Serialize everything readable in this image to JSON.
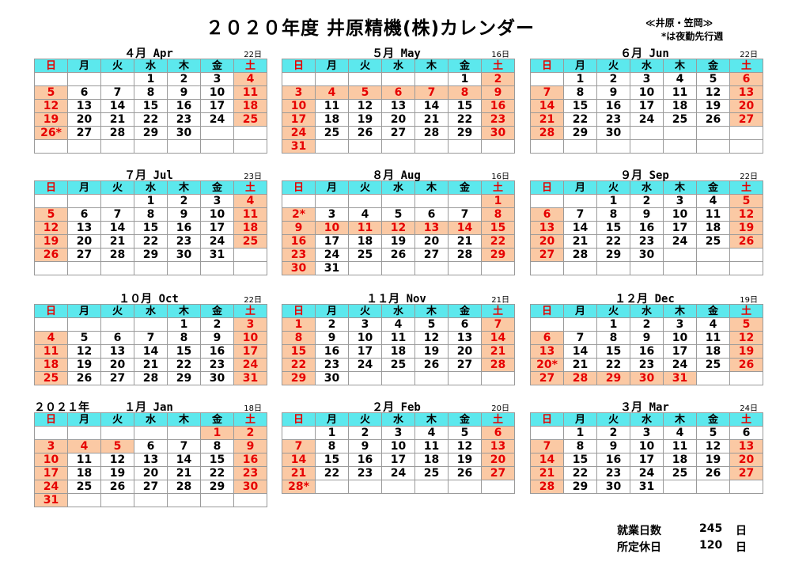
{
  "title": "２０２０年度 井原精機(株)カレンダー",
  "note_line1": "≪井原・笠岡≫",
  "note_line2": "*は夜勤先行週",
  "weekday_labels": [
    "日",
    "月",
    "火",
    "水",
    "木",
    "金",
    "土"
  ],
  "months": [
    {
      "label": "４月 Apr",
      "prefix": "",
      "days": "22日",
      "weeks": [
        [
          "",
          "",
          "",
          "1",
          "2",
          "3",
          "4"
        ],
        [
          "5",
          "6",
          "7",
          "8",
          "9",
          "10",
          "11"
        ],
        [
          "12",
          "13",
          "14",
          "15",
          "16",
          "17",
          "18"
        ],
        [
          "19",
          "20",
          "21",
          "22",
          "23",
          "24",
          "25"
        ],
        [
          "26*",
          "27",
          "28",
          "29",
          "30",
          "",
          ""
        ],
        [
          "",
          "",
          "",
          "",
          "",
          "",
          ""
        ]
      ],
      "holidays": [
        [
          "4"
        ],
        [
          "5",
          "11"
        ],
        [
          "12",
          "18"
        ],
        [
          "19",
          "25"
        ],
        [
          "26*"
        ],
        []
      ]
    },
    {
      "label": "５月 May",
      "prefix": "",
      "days": "16日",
      "weeks": [
        [
          "",
          "",
          "",
          "",
          "",
          "1",
          "2"
        ],
        [
          "3",
          "4",
          "5",
          "6",
          "7",
          "8",
          "9"
        ],
        [
          "10",
          "11",
          "12",
          "13",
          "14",
          "15",
          "16"
        ],
        [
          "17",
          "18",
          "19",
          "20",
          "21",
          "22",
          "23"
        ],
        [
          "24",
          "25",
          "26",
          "27",
          "28",
          "29",
          "30"
        ],
        [
          "31",
          "",
          "",
          "",
          "",
          "",
          ""
        ]
      ],
      "holidays": [
        [
          "2"
        ],
        [
          "3",
          "4",
          "5",
          "6",
          "7",
          "8",
          "9"
        ],
        [
          "10",
          "16"
        ],
        [
          "17",
          "23"
        ],
        [
          "24",
          "30"
        ],
        [
          "31"
        ]
      ]
    },
    {
      "label": "６月 Jun",
      "prefix": "",
      "days": "22日",
      "weeks": [
        [
          "",
          "1",
          "2",
          "3",
          "4",
          "5",
          "6"
        ],
        [
          "7",
          "8",
          "9",
          "10",
          "11",
          "12",
          "13"
        ],
        [
          "14",
          "15",
          "16",
          "17",
          "18",
          "19",
          "20"
        ],
        [
          "21",
          "22",
          "23",
          "24",
          "25",
          "26",
          "27"
        ],
        [
          "28",
          "29",
          "30",
          "",
          "",
          "",
          ""
        ],
        [
          "",
          "",
          "",
          "",
          "",
          "",
          ""
        ]
      ],
      "holidays": [
        [
          "6"
        ],
        [
          "7",
          "13"
        ],
        [
          "14",
          "20"
        ],
        [
          "21",
          "27"
        ],
        [
          "28"
        ],
        []
      ]
    },
    {
      "label": "７月 Jul",
      "prefix": "",
      "days": "23日",
      "weeks": [
        [
          "",
          "",
          "",
          "1",
          "2",
          "3",
          "4"
        ],
        [
          "5",
          "6",
          "7",
          "8",
          "9",
          "10",
          "11"
        ],
        [
          "12",
          "13",
          "14",
          "15",
          "16",
          "17",
          "18"
        ],
        [
          "19",
          "20",
          "21",
          "22",
          "23",
          "24",
          "25"
        ],
        [
          "26",
          "27",
          "28",
          "29",
          "30",
          "31",
          ""
        ],
        [
          "",
          "",
          "",
          "",
          "",
          "",
          ""
        ]
      ],
      "holidays": [
        [
          "4"
        ],
        [
          "5",
          "11"
        ],
        [
          "12",
          "18"
        ],
        [
          "19",
          "25"
        ],
        [
          "26"
        ],
        []
      ]
    },
    {
      "label": "８月 Aug",
      "prefix": "",
      "days": "16日",
      "weeks": [
        [
          "",
          "",
          "",
          "",
          "",
          "",
          "1"
        ],
        [
          "2*",
          "3",
          "4",
          "5",
          "6",
          "7",
          "8"
        ],
        [
          "9",
          "10",
          "11",
          "12",
          "13",
          "14",
          "15"
        ],
        [
          "16",
          "17",
          "18",
          "19",
          "20",
          "21",
          "22"
        ],
        [
          "23",
          "24",
          "25",
          "26",
          "27",
          "28",
          "29"
        ],
        [
          "30",
          "31",
          "",
          "",
          "",
          "",
          ""
        ]
      ],
      "holidays": [
        [
          "1"
        ],
        [
          "2*",
          "8"
        ],
        [
          "9",
          "10",
          "11",
          "12",
          "13",
          "14",
          "15"
        ],
        [
          "16",
          "22"
        ],
        [
          "23",
          "29"
        ],
        [
          "30"
        ]
      ]
    },
    {
      "label": "９月 Sep",
      "prefix": "",
      "days": "22日",
      "weeks": [
        [
          "",
          "",
          "1",
          "2",
          "3",
          "4",
          "5"
        ],
        [
          "6",
          "7",
          "8",
          "9",
          "10",
          "11",
          "12"
        ],
        [
          "13",
          "14",
          "15",
          "16",
          "17",
          "18",
          "19"
        ],
        [
          "20",
          "21",
          "22",
          "23",
          "24",
          "25",
          "26"
        ],
        [
          "27",
          "28",
          "29",
          "30",
          "",
          "",
          ""
        ],
        [
          "",
          "",
          "",
          "",
          "",
          "",
          ""
        ]
      ],
      "holidays": [
        [
          "5"
        ],
        [
          "6",
          "12"
        ],
        [
          "13",
          "19"
        ],
        [
          "20",
          "26"
        ],
        [
          "27"
        ],
        []
      ]
    },
    {
      "label": "１０月 Oct",
      "prefix": "",
      "days": "22日",
      "weeks": [
        [
          "",
          "",
          "",
          "",
          "1",
          "2",
          "3"
        ],
        [
          "4",
          "5",
          "6",
          "7",
          "8",
          "9",
          "10"
        ],
        [
          "11",
          "12",
          "13",
          "14",
          "15",
          "16",
          "17"
        ],
        [
          "18",
          "19",
          "20",
          "21",
          "22",
          "23",
          "24"
        ],
        [
          "25",
          "26",
          "27",
          "28",
          "29",
          "30",
          "31"
        ]
      ],
      "holidays": [
        [
          "3"
        ],
        [
          "4",
          "10"
        ],
        [
          "11",
          "17"
        ],
        [
          "18",
          "24"
        ],
        [
          "25",
          "31"
        ]
      ]
    },
    {
      "label": "１１月 Nov",
      "prefix": "",
      "days": "21日",
      "weeks": [
        [
          "1",
          "2",
          "3",
          "4",
          "5",
          "6",
          "7"
        ],
        [
          "8",
          "9",
          "10",
          "11",
          "12",
          "13",
          "14"
        ],
        [
          "15",
          "16",
          "17",
          "18",
          "19",
          "20",
          "21"
        ],
        [
          "22",
          "23",
          "24",
          "25",
          "26",
          "27",
          "28"
        ],
        [
          "29",
          "30",
          "",
          "",
          "",
          "",
          ""
        ]
      ],
      "holidays": [
        [
          "1",
          "7"
        ],
        [
          "8",
          "14"
        ],
        [
          "15",
          "21"
        ],
        [
          "22",
          "28"
        ],
        [
          "29"
        ]
      ]
    },
    {
      "label": "１２月 Dec",
      "prefix": "",
      "days": "19日",
      "weeks": [
        [
          "",
          "",
          "1",
          "2",
          "3",
          "4",
          "5"
        ],
        [
          "6",
          "7",
          "8",
          "9",
          "10",
          "11",
          "12"
        ],
        [
          "13",
          "14",
          "15",
          "16",
          "17",
          "18",
          "19"
        ],
        [
          "20*",
          "21",
          "22",
          "23",
          "24",
          "25",
          "26"
        ],
        [
          "27",
          "28",
          "29",
          "30",
          "31",
          "",
          ""
        ]
      ],
      "holidays": [
        [
          "5"
        ],
        [
          "6",
          "12"
        ],
        [
          "13",
          "19"
        ],
        [
          "20*",
          "26"
        ],
        [
          "27",
          "28",
          "29",
          "30",
          "31"
        ]
      ]
    },
    {
      "label": "１月 Jan",
      "prefix": "２０２１年",
      "days": "18日",
      "weeks": [
        [
          "",
          "",
          "",
          "",
          "",
          "1",
          "2"
        ],
        [
          "3",
          "4",
          "5",
          "6",
          "7",
          "8",
          "9"
        ],
        [
          "10",
          "11",
          "12",
          "13",
          "14",
          "15",
          "16"
        ],
        [
          "17",
          "18",
          "19",
          "20",
          "21",
          "22",
          "23"
        ],
        [
          "24",
          "25",
          "26",
          "27",
          "28",
          "29",
          "30"
        ],
        [
          "31",
          "",
          "",
          "",
          "",
          "",
          ""
        ]
      ],
      "holidays": [
        [
          "1",
          "2"
        ],
        [
          "3",
          "4",
          "5",
          "9"
        ],
        [
          "10",
          "16"
        ],
        [
          "17",
          "23"
        ],
        [
          "24",
          "30"
        ],
        [
          "31"
        ]
      ]
    },
    {
      "label": "２月 Feb",
      "prefix": "",
      "days": "20日",
      "weeks": [
        [
          "",
          "1",
          "2",
          "3",
          "4",
          "5",
          "6"
        ],
        [
          "7",
          "8",
          "9",
          "10",
          "11",
          "12",
          "13"
        ],
        [
          "14",
          "15",
          "16",
          "17",
          "18",
          "19",
          "20"
        ],
        [
          "21",
          "22",
          "23",
          "24",
          "25",
          "26",
          "27"
        ],
        [
          "28*",
          "",
          "",
          "",
          "",
          "",
          ""
        ]
      ],
      "holidays": [
        [
          "6"
        ],
        [
          "7",
          "13"
        ],
        [
          "14",
          "20"
        ],
        [
          "21",
          "27"
        ],
        [
          "28*"
        ]
      ]
    },
    {
      "label": "３月 Mar",
      "prefix": "",
      "days": "24日",
      "weeks": [
        [
          "",
          "1",
          "2",
          "3",
          "4",
          "5",
          "6"
        ],
        [
          "7",
          "8",
          "9",
          "10",
          "11",
          "12",
          "13"
        ],
        [
          "14",
          "15",
          "16",
          "17",
          "18",
          "19",
          "20"
        ],
        [
          "21",
          "22",
          "23",
          "24",
          "25",
          "26",
          "27"
        ],
        [
          "28",
          "29",
          "30",
          "31",
          "",
          "",
          ""
        ]
      ],
      "holidays": [
        [],
        [
          "7",
          "13"
        ],
        [
          "14",
          "20"
        ],
        [
          "21",
          "27"
        ],
        [
          "28"
        ]
      ]
    }
  ],
  "summary": {
    "work_days_label": "就業日数",
    "work_days_value": "245",
    "holidays_label": "所定休日",
    "holidays_value": "120",
    "unit": "日"
  }
}
